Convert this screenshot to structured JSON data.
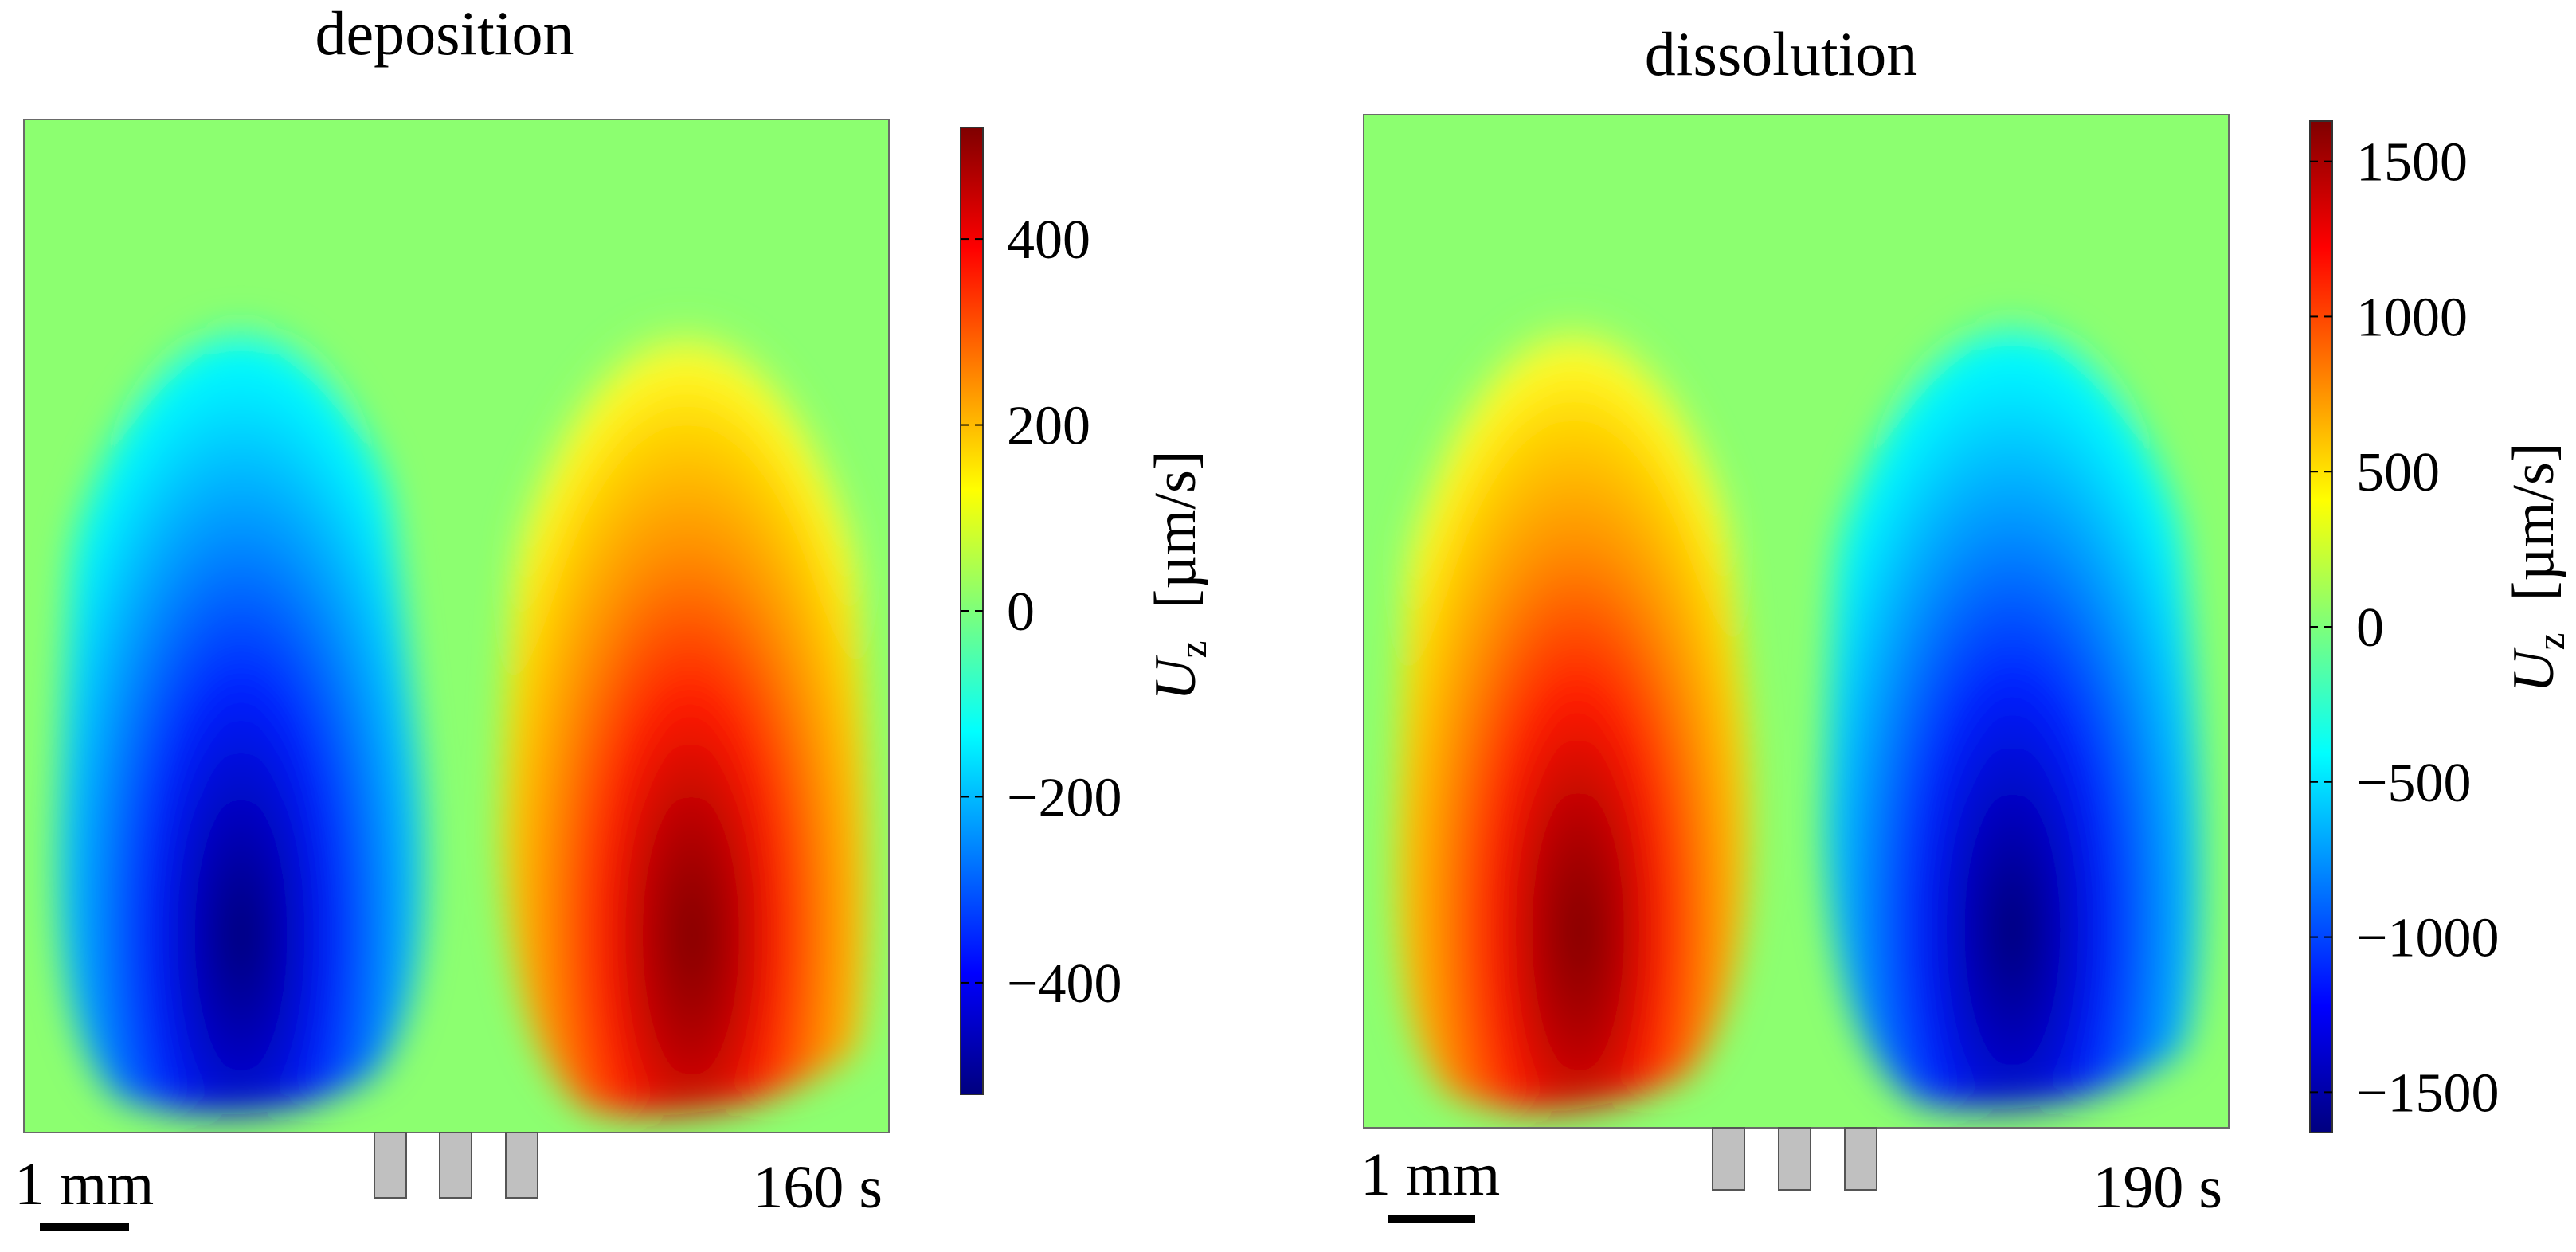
{
  "chart_data": [
    {
      "type": "heatmap",
      "title": "deposition",
      "time_label": "160 s",
      "scale_bar_label": "1 mm",
      "colormap": "jet",
      "colorbar": {
        "label_symbol": "U",
        "label_subscript": "z",
        "label_units": "[µm/s]",
        "range": [
          -520,
          520
        ],
        "ticks": [
          -400,
          -200,
          0,
          200,
          400
        ],
        "tick_labels": [
          "−400",
          "−200",
          "0",
          "200",
          "400"
        ]
      },
      "vortices": [
        {
          "sign": "negative",
          "position": "left",
          "peak_value": -520
        },
        {
          "sign": "positive",
          "position": "right",
          "peak_value": 520
        }
      ],
      "electrodes": 3
    },
    {
      "type": "heatmap",
      "title": "dissolution",
      "time_label": "190 s",
      "scale_bar_label": "1 mm",
      "colormap": "jet",
      "colorbar": {
        "label_symbol": "U",
        "label_subscript": "z",
        "label_units": "[µm/s]",
        "range": [
          -1630,
          1630
        ],
        "ticks": [
          -1500,
          -1000,
          -500,
          0,
          500,
          1000,
          1500
        ],
        "tick_labels": [
          "−1500",
          "−1000",
          "−500",
          "0",
          "500",
          "1000",
          "1500"
        ]
      },
      "vortices": [
        {
          "sign": "positive",
          "position": "left",
          "peak_value": 1630
        },
        {
          "sign": "negative",
          "position": "right",
          "peak_value": -1630
        }
      ],
      "electrodes": 3
    }
  ]
}
